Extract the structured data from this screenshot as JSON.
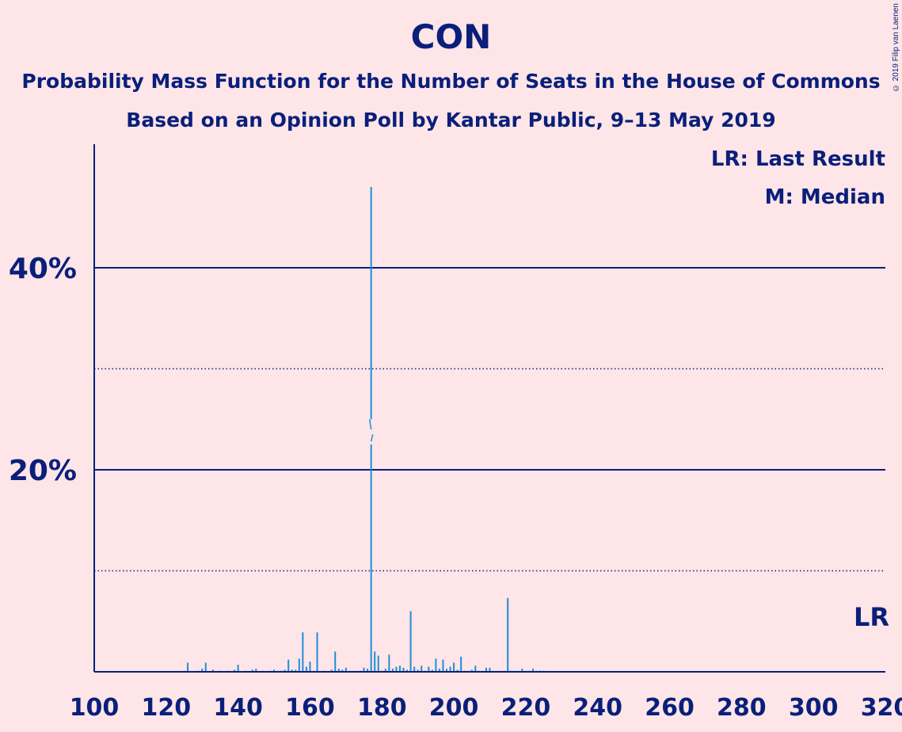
{
  "header": {
    "title": "CON",
    "subtitle1": "Probability Mass Function for the Number of Seats in the House of Commons",
    "subtitle2": "Based on an Opinion Poll by Kantar Public, 9–13 May 2019",
    "copyright": "© 2019 Filip van Laenen"
  },
  "legend": {
    "lr": "LR: Last Result",
    "median": "M: Median"
  },
  "colors": {
    "background": "#FDE5E8",
    "text": "#0A1F7A",
    "bar": "#1F8DD6"
  },
  "chart_data": {
    "type": "bar",
    "xlim": [
      100,
      320
    ],
    "ylim": [
      0,
      52
    ],
    "x_ticks": [
      100,
      120,
      140,
      160,
      180,
      200,
      220,
      240,
      260,
      280,
      300,
      320
    ],
    "y_ticks_major": [
      20,
      40
    ],
    "y_ticks_minor": [
      10,
      30
    ],
    "y_tick_labels": [
      "20%",
      "40%"
    ],
    "median_seat": 177,
    "last_result_seat": 318,
    "last_result_label": "LR",
    "seats": [
      125,
      126,
      129,
      130,
      131,
      133,
      135,
      137,
      139,
      140,
      142,
      144,
      145,
      147,
      149,
      150,
      151,
      152,
      153,
      154,
      155,
      156,
      157,
      158,
      159,
      160,
      161,
      162,
      164,
      166,
      167,
      168,
      169,
      170,
      171,
      172,
      173,
      174,
      175,
      176,
      177,
      178,
      179,
      180,
      181,
      182,
      183,
      184,
      185,
      186,
      187,
      188,
      189,
      190,
      191,
      192,
      193,
      194,
      195,
      196,
      197,
      198,
      199,
      200,
      201,
      202,
      203,
      204,
      205,
      206,
      207,
      208,
      209,
      210,
      211,
      212,
      213,
      214,
      215,
      216,
      217,
      218,
      219,
      220,
      221,
      222,
      223,
      224,
      225
    ],
    "probabilities": [
      0.1,
      0.9,
      0.1,
      0.3,
      0.9,
      0.2,
      0.1,
      0.1,
      0.2,
      0.7,
      0.1,
      0.2,
      0.3,
      0.1,
      0.1,
      0.2,
      0.1,
      0.1,
      0.2,
      1.2,
      0.2,
      0.2,
      1.3,
      3.9,
      0.5,
      1.0,
      0.1,
      3.9,
      0.1,
      0.2,
      2.0,
      0.3,
      0.2,
      0.4,
      0.1,
      0.1,
      0.1,
      0.1,
      0.4,
      0.3,
      48.0,
      2.0,
      1.6,
      0.1,
      0.3,
      1.7,
      0.3,
      0.5,
      0.6,
      0.4,
      0.2,
      6.0,
      0.5,
      0.2,
      0.6,
      0.1,
      0.5,
      0.2,
      1.3,
      0.3,
      1.2,
      0.3,
      0.5,
      0.9,
      0.2,
      1.5,
      0.1,
      0.1,
      0.2,
      0.6,
      0.1,
      0.1,
      0.4,
      0.4,
      0.1,
      0.1,
      0.1,
      0.1,
      7.3,
      0.1,
      0.1,
      0.1,
      0.3,
      0.1,
      0.1,
      0.3,
      0.1,
      0.1,
      0.1
    ]
  }
}
